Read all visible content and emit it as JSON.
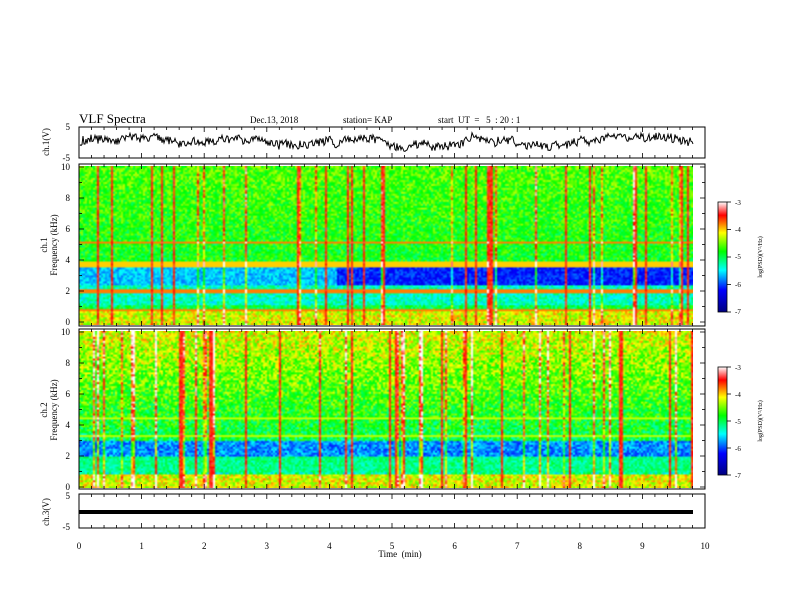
{
  "header": {
    "title": "VLF Spectra",
    "date": "Dec.13, 2018",
    "station": "station= KAP",
    "start_time": "start  UT  =   5  : 20 : 1"
  },
  "chart_data": [
    {
      "type": "line",
      "ylabel": "ch.1(V)",
      "ylim": [
        -5,
        5
      ],
      "ytick_labels": [
        "5",
        "-5"
      ],
      "xlim": [
        0,
        10
      ]
    },
    {
      "type": "heatmap",
      "ylabel": "ch.1\nFrequency (kHz)",
      "ylabel_line1": "ch.1",
      "ylabel_line2": "Frequency (kHz)",
      "ylim": [
        0,
        10
      ],
      "ytick_labels": [
        "0",
        "2",
        "4",
        "6",
        "8",
        "10"
      ],
      "xlim": [
        0,
        10
      ],
      "colorbar": {
        "label": "log(PSD)(V²/Hz)",
        "range": [
          -7,
          -3
        ],
        "tick_labels": [
          "-3",
          "-4",
          "-5",
          "-6",
          "-7"
        ]
      }
    },
    {
      "type": "heatmap",
      "ylabel": "ch.2\nFrequency (kHz)",
      "ylabel_line1": "ch.2",
      "ylabel_line2": "Frequency (kHz)",
      "ylim": [
        0,
        10
      ],
      "ytick_labels": [
        "0",
        "2",
        "4",
        "6",
        "8",
        "10"
      ],
      "xlim": [
        0,
        10
      ],
      "colorbar": {
        "label": "log(PSD)(V²/Hz)",
        "range": [
          -7,
          -3
        ],
        "tick_labels": [
          "-3",
          "-4",
          "-5",
          "-6",
          "-7"
        ]
      }
    },
    {
      "type": "line",
      "ylabel": "ch.3(V)",
      "ylim": [
        -5,
        5
      ],
      "ytick_labels": [
        "5",
        "-5"
      ],
      "xlim": [
        0,
        10
      ],
      "xlabel": "Time  (min)",
      "xtick_labels": [
        "0",
        "1",
        "2",
        "3",
        "4",
        "5",
        "6",
        "7",
        "8",
        "9",
        "10"
      ]
    }
  ],
  "colors": {
    "spectrogram_scale": [
      "#00007f",
      "#0000ff",
      "#00ffff",
      "#00ff00",
      "#ffff00",
      "#ff0000",
      "#ffffff"
    ],
    "trace": "#000000"
  }
}
